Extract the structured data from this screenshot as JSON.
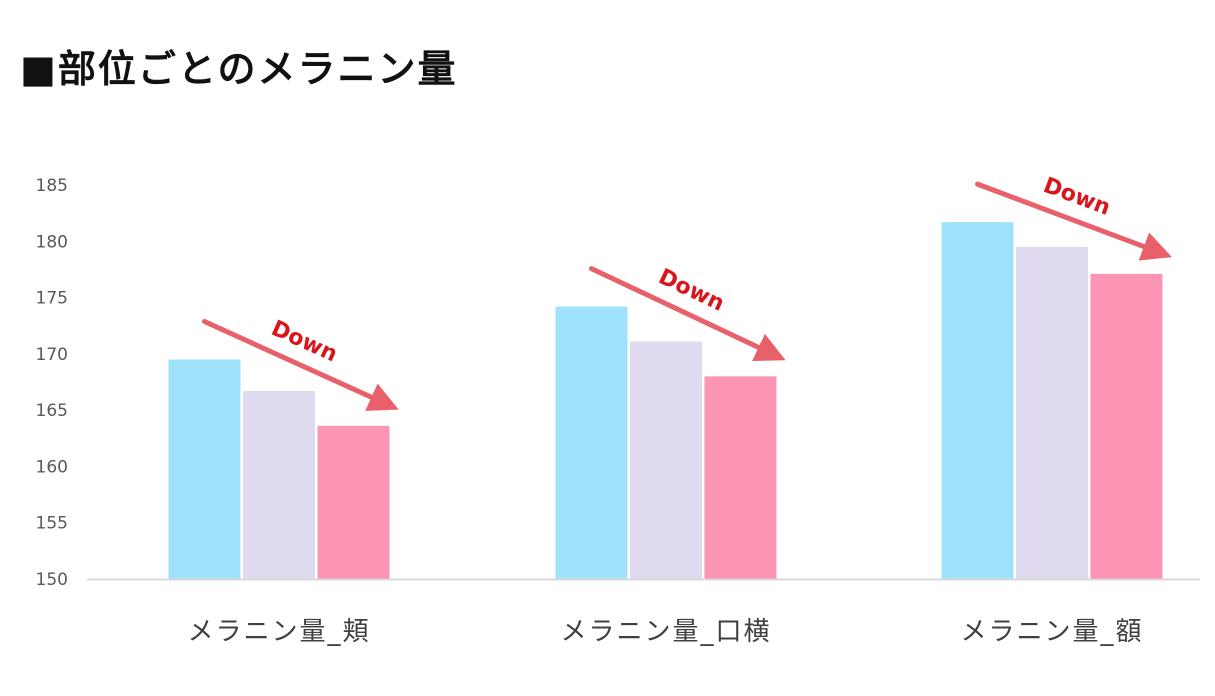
{
  "chart_data": {
    "type": "bar",
    "title": "■部位ごとのメラニン量",
    "xlabel": "",
    "ylabel": "",
    "ylim": [
      150,
      185
    ],
    "yticks": [
      150,
      155,
      160,
      165,
      170,
      175,
      180,
      185
    ],
    "grid": false,
    "legend": "none",
    "categories": [
      "メラニン量_頬",
      "メラニン量_口横",
      "メラニン量_額"
    ],
    "series": [
      {
        "color": "#9ee3fb",
        "values": [
          169.5,
          174.2,
          181.7
        ]
      },
      {
        "color": "#e0daf0",
        "values": [
          166.7,
          171.1,
          179.5
        ]
      },
      {
        "color": "#fc94b4",
        "values": [
          163.6,
          168.0,
          177.1
        ]
      }
    ],
    "annotations": [
      {
        "text": "Down",
        "category": "メラニン量_頬",
        "color": "#d9151b",
        "arrow_color": "#e8606a"
      },
      {
        "text": "Down",
        "category": "メラニン量_口横",
        "color": "#d9151b",
        "arrow_color": "#e8606a"
      },
      {
        "text": "Down",
        "category": "メラニン量_額",
        "color": "#d9151b",
        "arrow_color": "#e8606a"
      }
    ]
  }
}
